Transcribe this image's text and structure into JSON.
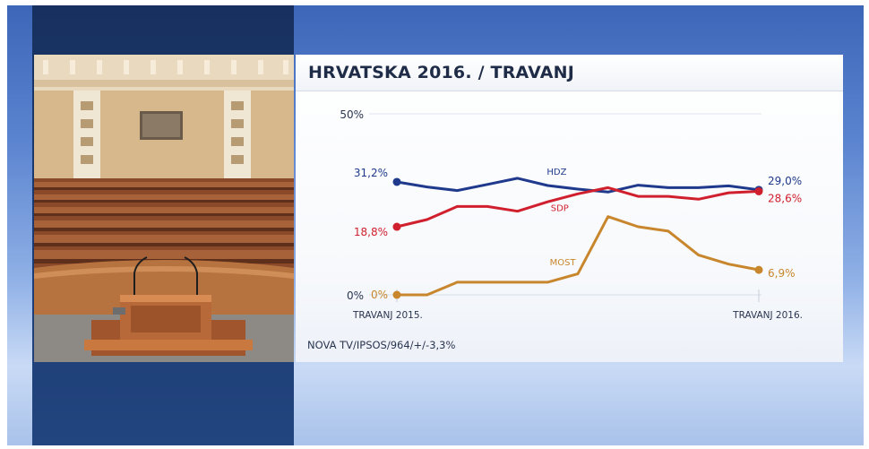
{
  "title": "HRVATSKA 2016. / TRAVANJ",
  "source": "NOVA TV/IPSOS/964/+/-3,3%",
  "chart_data": {
    "type": "line",
    "x_labels": [
      "TRAVANJ 2015.",
      "TRAVANJ 2016."
    ],
    "y_ticks": [
      "50%",
      "0%"
    ],
    "ylim": [
      0,
      50
    ],
    "series": [
      {
        "name": "HDZ",
        "color": "#1f3a8c",
        "values": [
          31.2,
          29.8,
          28.8,
          30.5,
          32.2,
          30.2,
          29.2,
          28.4,
          30.3,
          29.6,
          29.6,
          30.1,
          29.0
        ],
        "start_label": "31,2%",
        "end_label": "29,0%"
      },
      {
        "name": "SDP",
        "color": "#d0202e",
        "values": [
          18.8,
          20.8,
          24.4,
          24.4,
          23.1,
          25.7,
          27.9,
          29.6,
          27.2,
          27.2,
          26.4,
          28.2,
          28.6
        ],
        "start_label": "18,8%",
        "end_label": "28,6%"
      },
      {
        "name": "MOST",
        "color": "#c8862d",
        "values": [
          0,
          0,
          3.5,
          3.5,
          3.5,
          3.5,
          5.8,
          21.6,
          18.8,
          17.6,
          11.0,
          8.5,
          6.9
        ],
        "start_label": "0%",
        "end_label": "6,9%"
      }
    ]
  }
}
